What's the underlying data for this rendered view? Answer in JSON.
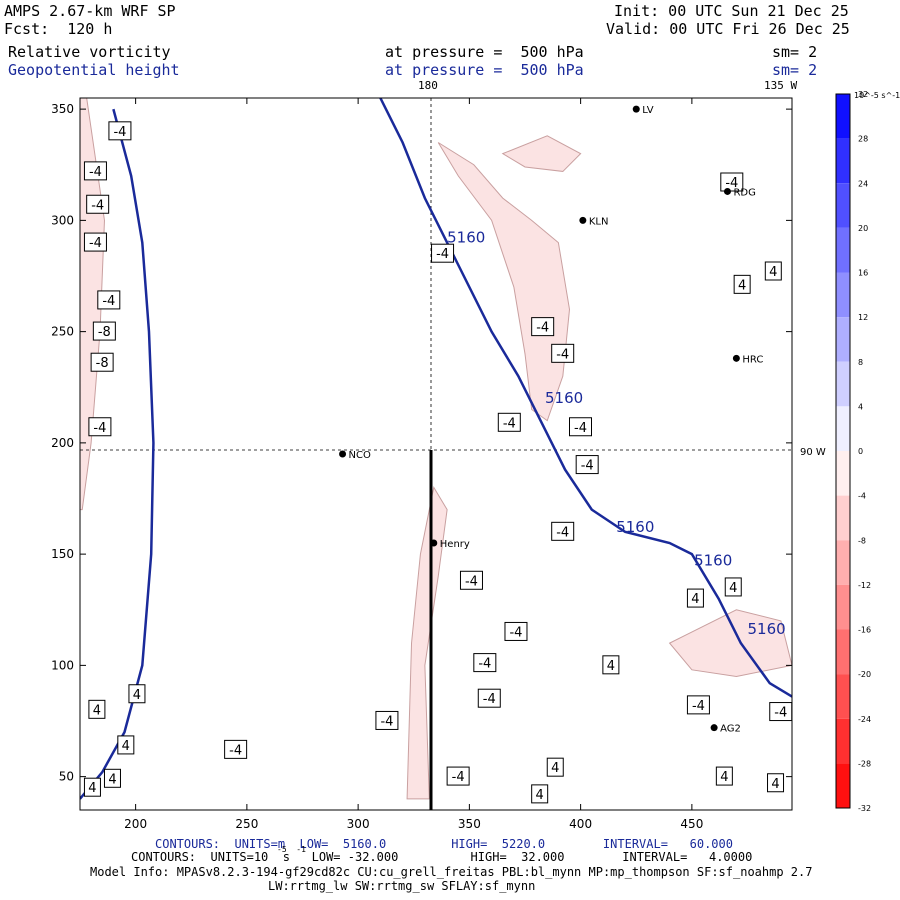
{
  "header": {
    "model": "AMPS 2.67-km WRF SP",
    "init": "Init: 00 UTC Sun 21 Dec 25",
    "fcst": "Fcst:  120 h",
    "valid": "Valid: 00 UTC Fri 26 Dec 25",
    "field1": "Relative vorticity",
    "field1_level": "at pressure =  500 hPa",
    "field1_sm": "sm= 2",
    "field2": "Geopotential height",
    "field2_level": "at pressure =  500 hPa",
    "field2_sm": "sm= 2"
  },
  "map": {
    "meridian_180": "180",
    "meridian_135w": "135 W",
    "meridian_90w": "90 W"
  },
  "stations": [
    {
      "name": "NCO",
      "x": 293,
      "y": 195
    },
    {
      "name": "Henry",
      "x": 334,
      "y": 155
    },
    {
      "name": "KLN",
      "x": 401,
      "y": 300
    },
    {
      "name": "RDG",
      "x": 466,
      "y": 313
    },
    {
      "name": "HRC",
      "x": 470,
      "y": 238
    },
    {
      "name": "AG2",
      "x": 460,
      "y": 72
    },
    {
      "name": "LV",
      "x": 425,
      "y": 350
    }
  ],
  "chart_data": {
    "type": "contour",
    "xlim": [
      175,
      495
    ],
    "ylim": [
      35,
      355
    ],
    "x_ticks": [
      200,
      250,
      300,
      350,
      400,
      450
    ],
    "y_ticks": [
      50,
      100,
      150,
      200,
      250,
      300,
      350
    ],
    "height_contours": {
      "units": "m",
      "value_label": "5160",
      "low": 5160.0,
      "high": 5220.0,
      "interval": 60.0,
      "lines": [
        [
          [
            175,
            40
          ],
          [
            185,
            52
          ],
          [
            195,
            70
          ],
          [
            203,
            100
          ],
          [
            207,
            150
          ],
          [
            208,
            200
          ],
          [
            206,
            250
          ],
          [
            203,
            290
          ],
          [
            198,
            320
          ],
          [
            190,
            350
          ]
        ],
        [
          [
            310,
            355
          ],
          [
            320,
            335
          ],
          [
            330,
            310
          ],
          [
            345,
            280
          ],
          [
            360,
            250
          ],
          [
            372,
            230
          ],
          [
            383,
            208
          ],
          [
            393,
            188
          ],
          [
            405,
            170
          ],
          [
            420,
            160
          ],
          [
            440,
            155
          ],
          [
            450,
            150
          ],
          [
            462,
            130
          ],
          [
            472,
            110
          ],
          [
            485,
            92
          ],
          [
            495,
            86
          ]
        ]
      ],
      "labels": [
        {
          "text": "5160",
          "x": 340,
          "y": 290
        },
        {
          "text": "5160",
          "x": 384,
          "y": 218
        },
        {
          "text": "5160",
          "x": 416,
          "y": 160
        },
        {
          "text": "5160",
          "x": 451,
          "y": 145
        },
        {
          "text": "5160",
          "x": 475,
          "y": 114
        }
      ]
    },
    "vorticity_contours": {
      "units": "10^-5 s^-1",
      "low": -32.0,
      "high": 32.0,
      "interval": 4.0,
      "labels": [
        {
          "text": "-4",
          "x": 178,
          "y": 305
        },
        {
          "text": "-4",
          "x": 177,
          "y": 288
        },
        {
          "text": "-4",
          "x": 188,
          "y": 338
        },
        {
          "text": "-4",
          "x": 183,
          "y": 262
        },
        {
          "text": "-8",
          "x": 181,
          "y": 248
        },
        {
          "text": "-8",
          "x": 180,
          "y": 234
        },
        {
          "text": "-4",
          "x": 179,
          "y": 205
        },
        {
          "text": "-4",
          "x": 177,
          "y": 320
        },
        {
          "text": "4",
          "x": 197,
          "y": 85
        },
        {
          "text": "4",
          "x": 179,
          "y": 78
        },
        {
          "text": "4",
          "x": 177,
          "y": 43
        },
        {
          "text": "4",
          "x": 186,
          "y": 47
        },
        {
          "text": "4",
          "x": 192,
          "y": 62
        },
        {
          "text": "-4",
          "x": 240,
          "y": 60
        },
        {
          "text": "-4",
          "x": 308,
          "y": 73
        },
        {
          "text": "-4",
          "x": 333,
          "y": 283
        },
        {
          "text": "-4",
          "x": 363,
          "y": 207
        },
        {
          "text": "-4",
          "x": 346,
          "y": 136
        },
        {
          "text": "-4",
          "x": 366,
          "y": 113
        },
        {
          "text": "-4",
          "x": 352,
          "y": 99
        },
        {
          "text": "-4",
          "x": 354,
          "y": 83
        },
        {
          "text": "-4",
          "x": 340,
          "y": 48
        },
        {
          "text": "4",
          "x": 385,
          "y": 52
        },
        {
          "text": "4",
          "x": 378,
          "y": 40
        },
        {
          "text": "-4",
          "x": 378,
          "y": 250
        },
        {
          "text": "-4",
          "x": 387,
          "y": 238
        },
        {
          "text": "-4",
          "x": 395,
          "y": 205
        },
        {
          "text": "-4",
          "x": 398,
          "y": 188
        },
        {
          "text": "-4",
          "x": 387,
          "y": 158
        },
        {
          "text": "4",
          "x": 410,
          "y": 98
        },
        {
          "text": "4",
          "x": 448,
          "y": 128
        },
        {
          "text": "4",
          "x": 465,
          "y": 133
        },
        {
          "text": "-4",
          "x": 448,
          "y": 80
        },
        {
          "text": "-4",
          "x": 485,
          "y": 77
        },
        {
          "text": "4",
          "x": 461,
          "y": 48
        },
        {
          "text": "4",
          "x": 484,
          "y": 45
        },
        {
          "text": "4",
          "x": 469,
          "y": 269
        },
        {
          "text": "4",
          "x": 483,
          "y": 275
        },
        {
          "text": "-4",
          "x": 463,
          "y": 315
        }
      ]
    },
    "colorbar": {
      "unit_label": "10^-5 s^-1",
      "ticks": [
        32,
        28,
        24,
        20,
        16,
        12,
        8,
        4,
        0,
        -4,
        -8,
        -12,
        -16,
        -20,
        -24,
        -28,
        -32
      ],
      "positive_color": "#0000ff",
      "negative_color": "#ff0000",
      "zero_color": "#ffffff"
    }
  },
  "footer": {
    "line1_label": "CONTOURS:  UNITS=m  LOW=  5160.0         HIGH=  5220.0        INTERVAL=   60.000",
    "line2_label": "CONTOURS:  UNITS=10  s   LOW= -32.000          HIGH=  32.000        INTERVAL=   4.0000",
    "line2_exp": "-5  -1",
    "line3": "Model Info: MPASv8.2.3-194-gf29cd82c CU:cu_grell_freitas PBL:bl_mynn MP:mp_thompson SF:sf_noahmp 2.7",
    "line4": "LW:rrtmg_lw SW:rrtmg_sw SFLAY:sf_mynn"
  }
}
